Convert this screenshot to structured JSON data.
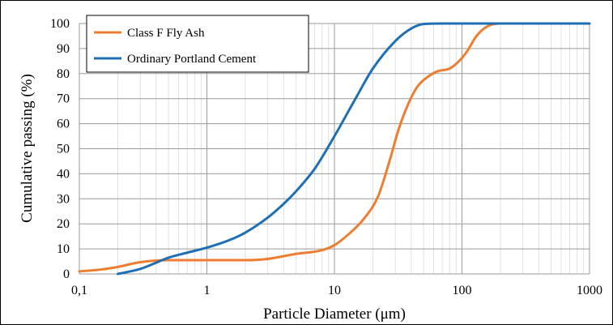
{
  "chart_data": {
    "type": "line",
    "xlabel": "Particle Diameter (μm)",
    "ylabel": "Cumulative passing (%)",
    "x_scale": "log",
    "xlim": [
      0.1,
      1000
    ],
    "ylim": [
      0,
      100
    ],
    "x_ticks": [
      "0,1",
      "1",
      "10",
      "100",
      "1000"
    ],
    "y_ticks": [
      "0",
      "10",
      "20",
      "30",
      "40",
      "50",
      "60",
      "70",
      "80",
      "90",
      "100"
    ],
    "grid": true,
    "legend_position": "top-left",
    "series": [
      {
        "name": "Class F Fly Ash",
        "color": "#ED7D31",
        "x": [
          0.1,
          0.15,
          0.2,
          0.3,
          0.5,
          0.8,
          1,
          1.5,
          2,
          3,
          5,
          8,
          10,
          13,
          17,
          22,
          27,
          32,
          38,
          45,
          55,
          65,
          80,
          95,
          110,
          130,
          160,
          200,
          300,
          500,
          800
        ],
        "y": [
          1,
          1.8,
          2.8,
          4.7,
          5.5,
          5.5,
          5.5,
          5.5,
          5.5,
          6,
          8,
          9.5,
          11.5,
          16,
          22,
          31,
          45,
          58,
          68,
          75,
          79,
          81,
          82,
          85,
          89,
          95,
          99,
          100,
          100,
          100,
          100
        ]
      },
      {
        "name": "Ordinary Portland Cement",
        "color": "#1F6FB4",
        "x": [
          0.2,
          0.3,
          0.4,
          0.5,
          0.7,
          1,
          1.5,
          2,
          3,
          4,
          5,
          7,
          10,
          15,
          20,
          30,
          40,
          50,
          70,
          100,
          1000
        ],
        "y": [
          0,
          2,
          4.5,
          6.5,
          8.5,
          10.5,
          13.5,
          16.5,
          22.5,
          28,
          33,
          42,
          55,
          71,
          82,
          93,
          98,
          99.8,
          100,
          100,
          100
        ]
      }
    ]
  }
}
